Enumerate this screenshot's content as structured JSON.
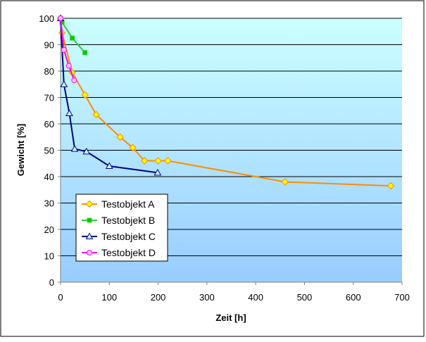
{
  "chart_data": {
    "type": "line",
    "title": "",
    "xlabel": "Zeit [h]",
    "ylabel": "Gewicht [%]",
    "xlim": [
      0,
      700
    ],
    "ylim": [
      0,
      100
    ],
    "x_ticks": [
      0,
      100,
      200,
      300,
      400,
      500,
      600,
      700
    ],
    "y_ticks": [
      0,
      10,
      20,
      30,
      40,
      50,
      60,
      70,
      80,
      90,
      100
    ],
    "grid": "horizontal",
    "legend_position": "bottom-left",
    "series": [
      {
        "name": "Testobjekt A",
        "color": "#ff8c00",
        "marker": "diamond",
        "marker_fill": "#ffff00",
        "x": [
          0,
          3,
          24,
          50,
          73,
          122,
          148,
          172,
          200,
          220,
          460,
          677
        ],
        "y": [
          100,
          94.5,
          79.5,
          71,
          63.5,
          55,
          51,
          46,
          46,
          46,
          38,
          36.5
        ]
      },
      {
        "name": "Testobjekt B",
        "color": "#33cc33",
        "marker": "square",
        "marker_fill": "#00cc00",
        "x": [
          0,
          3,
          24,
          50
        ],
        "y": [
          100,
          98.5,
          92.5,
          87
        ]
      },
      {
        "name": "Testobjekt C",
        "color": "#000080",
        "marker": "triangle",
        "marker_fill": "#ccffff",
        "x": [
          0,
          7,
          18,
          29,
          53,
          100,
          199
        ],
        "y": [
          100,
          75,
          64,
          50.5,
          49.5,
          44,
          41.5
        ]
      },
      {
        "name": "Testobjekt D",
        "color": "#ff00ff",
        "marker": "circle",
        "marker_fill": "#ffccff",
        "x": [
          0,
          7,
          17,
          28
        ],
        "y": [
          100,
          88,
          82,
          76.5
        ]
      }
    ]
  }
}
